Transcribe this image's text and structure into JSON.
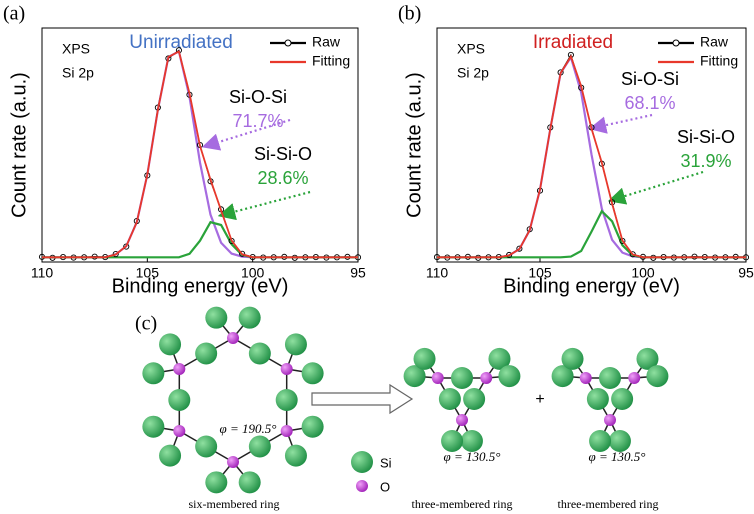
{
  "chart_data": [
    {
      "type": "line",
      "panel": "(a)",
      "title": "Unirradiated",
      "title_color": "#4472c4",
      "xlabel": "Binding energy (eV)",
      "ylabel": "Count rate (a.u.)",
      "annotations": [
        "XPS",
        "Si 2p"
      ],
      "xlim": [
        110,
        95
      ],
      "xticks": [
        110,
        105,
        100,
        95
      ],
      "ylim": [
        0,
        1
      ],
      "x": [
        110,
        109.5,
        109,
        108.5,
        108,
        107.5,
        107,
        106.5,
        106,
        105.5,
        105,
        104.5,
        104,
        103.5,
        103,
        102.5,
        102,
        101.5,
        101,
        100.5,
        100,
        99.5,
        99,
        98.5,
        98,
        97.5,
        97,
        96.5,
        96,
        95.5,
        95
      ],
      "series": [
        {
          "name": "Raw",
          "color": "#000000",
          "marker": "circle",
          "values": [
            0.022,
            0.018,
            0.021,
            0.019,
            0.02,
            0.023,
            0.021,
            0.034,
            0.066,
            0.175,
            0.37,
            0.66,
            0.87,
            0.905,
            0.715,
            0.5,
            0.345,
            0.225,
            0.09,
            0.035,
            0.021,
            0.019,
            0.02,
            0.022,
            0.018,
            0.02,
            0.021,
            0.019,
            0.02,
            0.022,
            0.02
          ]
        },
        {
          "name": "Fitting",
          "color": "#e8382b",
          "values": [
            0.02,
            0.02,
            0.02,
            0.02,
            0.02,
            0.02,
            0.02,
            0.032,
            0.068,
            0.17,
            0.373,
            0.651,
            0.876,
            0.9,
            0.721,
            0.496,
            0.352,
            0.22,
            0.092,
            0.033,
            0.02,
            0.02,
            0.02,
            0.02,
            0.02,
            0.02,
            0.02,
            0.02,
            0.02,
            0.02,
            0.02
          ]
        }
      ],
      "components": [
        {
          "name": "Si-O-Si",
          "value": 71.7,
          "value_label": "71.7%",
          "color": "#a66be0",
          "values": [
            0.02,
            0.02,
            0.02,
            0.02,
            0.02,
            0.02,
            0.02,
            0.032,
            0.068,
            0.17,
            0.373,
            0.651,
            0.876,
            0.9,
            0.706,
            0.425,
            0.202,
            0.082,
            0.036,
            0.023,
            0.02,
            0.02,
            0.02,
            0.02,
            0.02,
            0.02,
            0.02,
            0.02,
            0.02,
            0.02,
            0.02
          ]
        },
        {
          "name": "Si-Si-O",
          "value": 28.6,
          "value_label": "28.6%",
          "color": "#2aa33a",
          "values": [
            0.02,
            0.02,
            0.02,
            0.02,
            0.02,
            0.02,
            0.02,
            0.02,
            0.02,
            0.02,
            0.02,
            0.02,
            0.02,
            0.02,
            0.035,
            0.091,
            0.17,
            0.158,
            0.076,
            0.03,
            0.02,
            0.02,
            0.02,
            0.02,
            0.02,
            0.02,
            0.02,
            0.02,
            0.02,
            0.02,
            0.02
          ]
        }
      ]
    },
    {
      "type": "line",
      "panel": "(b)",
      "title": "Irradiated",
      "title_color": "#d02020",
      "xlabel": "Binding energy (eV)",
      "ylabel": "Count rate (a.u.)",
      "annotations": [
        "XPS",
        "Si 2p"
      ],
      "xlim": [
        110,
        95
      ],
      "xticks": [
        110,
        105,
        100,
        95
      ],
      "ylim": [
        0,
        1
      ],
      "x": [
        110,
        109.5,
        109,
        108.5,
        108,
        107.5,
        107,
        106.5,
        106,
        105.5,
        105,
        104.5,
        104,
        103.5,
        103,
        102.5,
        102,
        101.5,
        101,
        100.5,
        100,
        99.5,
        99,
        98.5,
        98,
        97.5,
        97,
        96.5,
        96,
        95.5,
        95
      ],
      "series": [
        {
          "name": "Raw",
          "color": "#000000",
          "marker": "circle",
          "values": [
            0.021,
            0.019,
            0.02,
            0.022,
            0.018,
            0.02,
            0.021,
            0.03,
            0.057,
            0.14,
            0.305,
            0.575,
            0.81,
            0.885,
            0.745,
            0.575,
            0.42,
            0.255,
            0.09,
            0.033,
            0.022,
            0.018,
            0.021,
            0.019,
            0.02,
            0.023,
            0.021,
            0.019,
            0.02,
            0.022,
            0.02
          ]
        },
        {
          "name": "Fitting",
          "color": "#e8382b",
          "values": [
            0.02,
            0.02,
            0.02,
            0.02,
            0.02,
            0.02,
            0.02,
            0.028,
            0.055,
            0.136,
            0.31,
            0.569,
            0.807,
            0.878,
            0.751,
            0.57,
            0.425,
            0.249,
            0.092,
            0.032,
            0.02,
            0.02,
            0.02,
            0.02,
            0.02,
            0.02,
            0.02,
            0.02,
            0.02,
            0.02,
            0.02
          ]
        }
      ],
      "components": [
        {
          "name": "Si-O-Si",
          "value": 68.1,
          "value_label": "68.1%",
          "color": "#a66be0",
          "values": [
            0.02,
            0.02,
            0.02,
            0.02,
            0.02,
            0.02,
            0.02,
            0.028,
            0.055,
            0.136,
            0.31,
            0.569,
            0.807,
            0.875,
            0.724,
            0.46,
            0.228,
            0.095,
            0.04,
            0.024,
            0.02,
            0.02,
            0.02,
            0.02,
            0.02,
            0.02,
            0.02,
            0.02,
            0.02,
            0.02,
            0.02
          ]
        },
        {
          "name": "Si-Si-O",
          "value": 31.9,
          "value_label": "31.9%",
          "color": "#2aa33a",
          "values": [
            0.02,
            0.02,
            0.02,
            0.02,
            0.02,
            0.02,
            0.02,
            0.02,
            0.02,
            0.02,
            0.02,
            0.02,
            0.02,
            0.023,
            0.047,
            0.13,
            0.217,
            0.174,
            0.072,
            0.028,
            0.02,
            0.02,
            0.02,
            0.02,
            0.02,
            0.02,
            0.02,
            0.02,
            0.02,
            0.02,
            0.02
          ]
        }
      ]
    }
  ],
  "diagram": {
    "label": "(c)",
    "operator": "+",
    "structures": [
      {
        "angle": "φ = 190.5°",
        "name": "six-membered ring"
      },
      {
        "angle": "φ = 130.5°",
        "name": "three-membered ring"
      },
      {
        "angle": "φ = 130.5°",
        "name": "three-membered ring"
      }
    ],
    "legend": [
      "Si",
      "O"
    ]
  }
}
